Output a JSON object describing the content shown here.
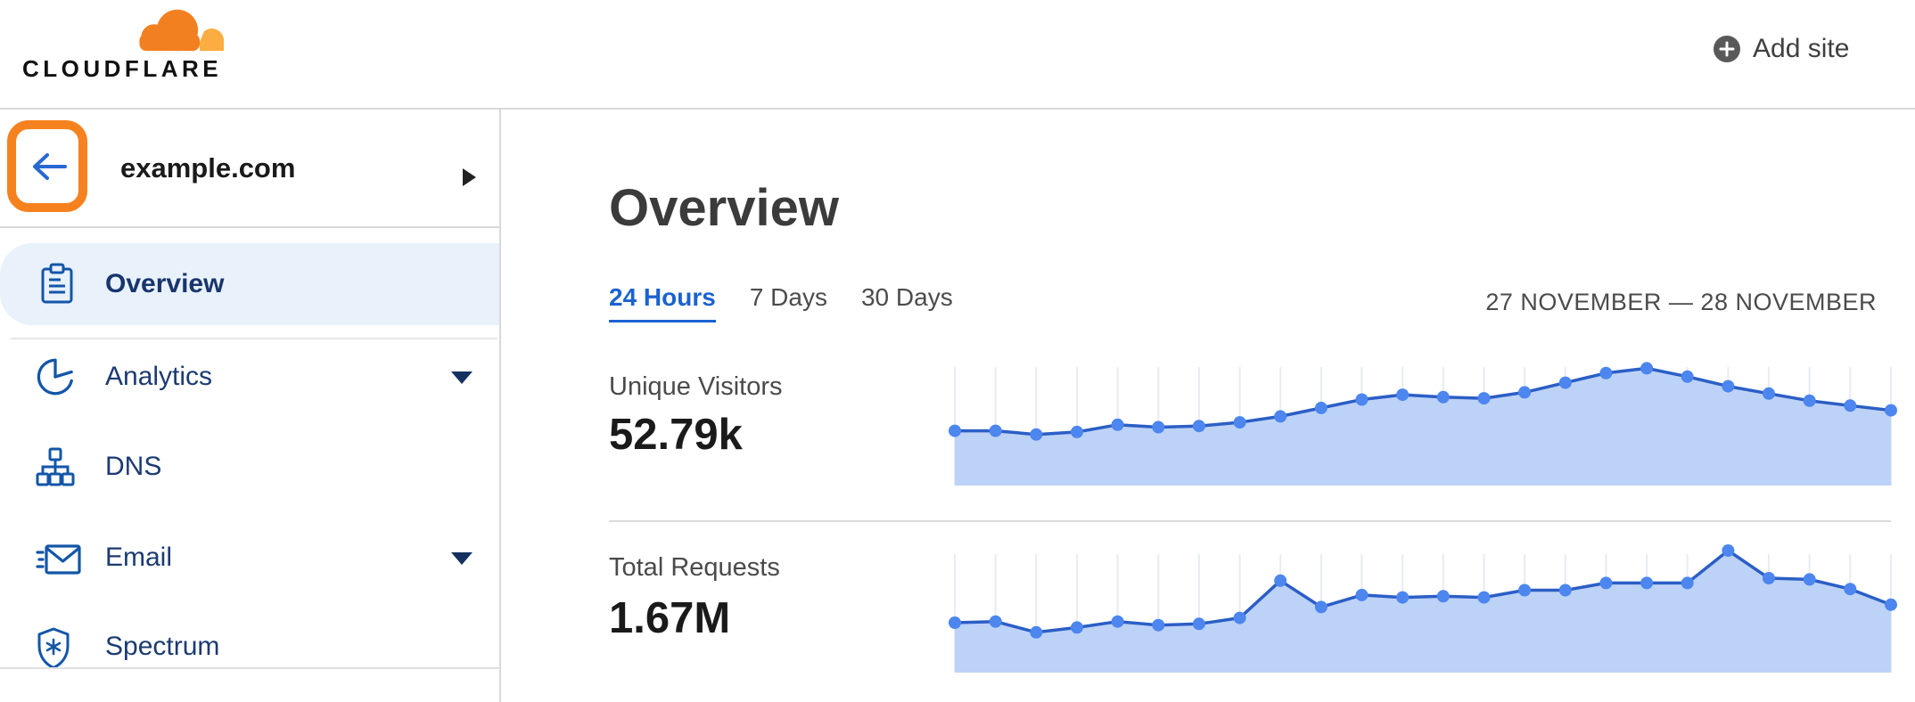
{
  "topbar": {
    "logo_text": "CLOUDFLARE",
    "add_site_label": "Add site"
  },
  "sidebar": {
    "domain": "example.com",
    "items": [
      {
        "label": "Overview",
        "icon": "clipboard-icon",
        "selected": true,
        "expandable": false
      },
      {
        "label": "Analytics",
        "icon": "pie-chart-icon",
        "selected": false,
        "expandable": true
      },
      {
        "label": "DNS",
        "icon": "sitemap-icon",
        "selected": false,
        "expandable": false
      },
      {
        "label": "Email",
        "icon": "email-icon",
        "selected": false,
        "expandable": true
      },
      {
        "label": "Spectrum",
        "icon": "shield-icon",
        "selected": false,
        "expandable": false
      }
    ]
  },
  "main": {
    "title": "Overview",
    "tabs": [
      {
        "label": "24 Hours",
        "active": true
      },
      {
        "label": "7 Days",
        "active": false
      },
      {
        "label": "30 Days",
        "active": false
      }
    ],
    "date_range": "27 NOVEMBER — 28 NOVEMBER"
  },
  "chart_data": [
    {
      "type": "area",
      "title": "Unique Visitors",
      "total": "52.79k",
      "points": 24,
      "x": "hourly intervals over 24 hours (27 Nov – 28 Nov), no tick labels shown",
      "ylabel": "unique visitors (axis hidden, values relative 0–100)",
      "ylim": [
        0,
        100
      ],
      "grid": "vertical gridlines at each point",
      "legend": "none",
      "values": [
        44,
        44,
        41,
        43,
        49,
        47,
        48,
        51,
        56,
        63,
        70,
        74,
        72,
        71,
        76,
        84,
        92,
        96,
        89,
        81,
        75,
        69,
        65,
        61
      ]
    },
    {
      "type": "area",
      "title": "Total Requests",
      "total": "1.67M",
      "points": 24,
      "x": "hourly intervals over 24 hours (27 Nov – 28 Nov), no tick labels shown",
      "ylabel": "requests (axis hidden, values relative 0–100)",
      "ylim": [
        0,
        100
      ],
      "grid": "vertical gridlines at each point",
      "legend": "none",
      "values": [
        40,
        41,
        32,
        36,
        41,
        38,
        39,
        44,
        75,
        53,
        63,
        61,
        62,
        61,
        67,
        67,
        73,
        73,
        73,
        100,
        77,
        76,
        68,
        55
      ]
    }
  ],
  "colors": {
    "brand_orange": "#F6821F",
    "logo_orange": "#F38020",
    "logo_orange_light": "#FBAD41",
    "link_blue": "#1B62D1",
    "back_arrow_blue": "#2968D4",
    "sidebar_icon_blue": "#1356A8",
    "sidebar_text_navy": "#1C3A72",
    "selected_item_bg": "#E9F1FB",
    "chart_line": "#2B5EC6",
    "chart_dot": "#4C86EE",
    "chart_fill": "#BDD2F7",
    "chart_gridline": "#E9EBF4",
    "border_gray": "#D9D9D9"
  }
}
